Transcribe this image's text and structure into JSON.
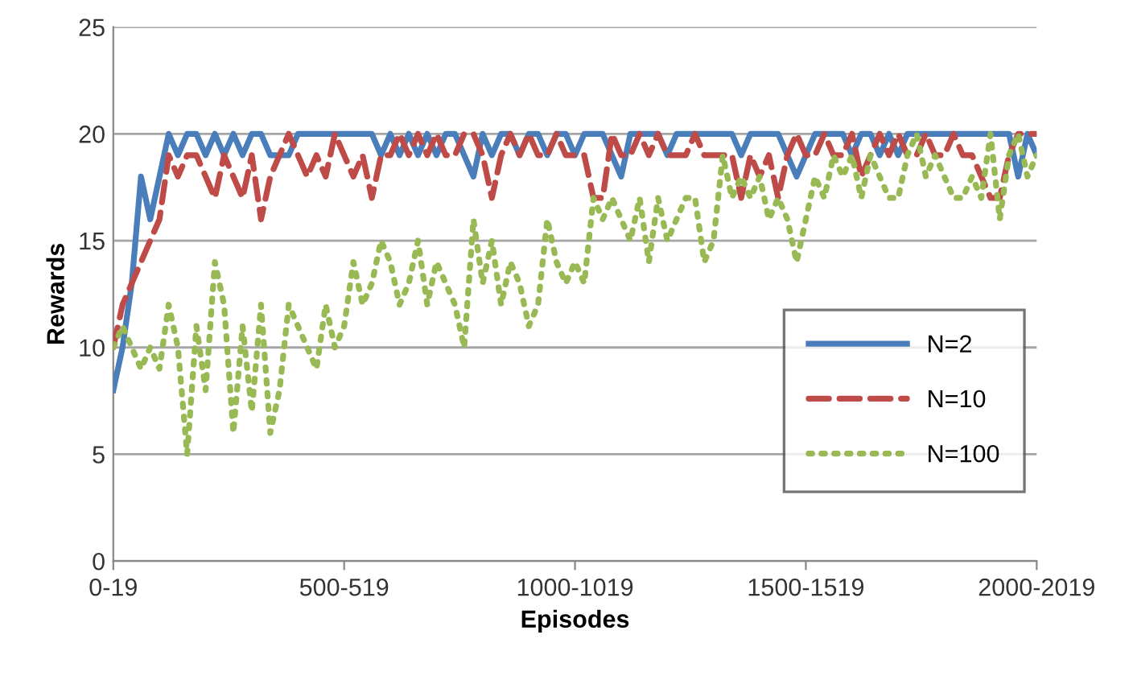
{
  "chart_data": {
    "type": "line",
    "xlabel": "Episodes",
    "ylabel": "Rewards",
    "categories": [
      "0-19",
      null,
      null,
      null,
      null,
      null,
      null,
      null,
      null,
      null,
      null,
      null,
      null,
      null,
      null,
      null,
      null,
      null,
      null,
      null,
      null,
      null,
      null,
      null,
      null,
      "500-519",
      null,
      null,
      null,
      null,
      null,
      null,
      null,
      null,
      null,
      null,
      null,
      null,
      null,
      null,
      null,
      null,
      null,
      null,
      null,
      null,
      null,
      null,
      null,
      null,
      "1000-1019",
      null,
      null,
      null,
      null,
      null,
      null,
      null,
      null,
      null,
      null,
      null,
      null,
      null,
      null,
      null,
      null,
      null,
      null,
      null,
      null,
      null,
      null,
      null,
      null,
      "1500-1519",
      null,
      null,
      null,
      null,
      null,
      null,
      null,
      null,
      null,
      null,
      null,
      null,
      null,
      null,
      null,
      null,
      null,
      null,
      null,
      null,
      null,
      null,
      null,
      null,
      "2000-2019"
    ],
    "series": [
      {
        "name": "N=2",
        "color": "#4a7ebb",
        "line_style": "solid",
        "values": [
          8,
          10,
          13,
          18,
          16,
          18,
          20,
          19,
          20,
          20,
          19,
          20,
          19,
          20,
          19,
          20,
          20,
          19,
          19,
          19,
          20,
          20,
          20,
          20,
          20,
          20,
          20,
          20,
          20,
          19,
          20,
          19,
          20,
          19,
          20,
          19,
          20,
          20,
          19,
          18,
          20,
          19,
          20,
          20,
          19,
          20,
          20,
          19,
          20,
          20,
          19,
          20,
          20,
          20,
          19,
          18,
          20,
          20,
          20,
          20,
          19,
          20,
          20,
          20,
          20,
          20,
          20,
          20,
          19,
          20,
          20,
          20,
          20,
          19,
          18,
          19,
          20,
          20,
          20,
          20,
          19,
          20,
          20,
          19,
          20,
          19,
          20,
          20,
          20,
          20,
          20,
          20,
          20,
          20,
          20,
          20,
          20,
          20,
          18,
          20,
          19
        ]
      },
      {
        "name": "N=10",
        "color": "#be4b48",
        "line_style": "dashed",
        "values": [
          10,
          12,
          13,
          14,
          15,
          16,
          19,
          18,
          19,
          19,
          18,
          17,
          19,
          18,
          17,
          19,
          16,
          18,
          19,
          20,
          19,
          18,
          19,
          18,
          20,
          19,
          18,
          19,
          17,
          19,
          19,
          20,
          19,
          20,
          19,
          20,
          19,
          19,
          20,
          20,
          19,
          17,
          19,
          20,
          19,
          20,
          19,
          19,
          20,
          19,
          19,
          19,
          17,
          17,
          20,
          19,
          19,
          20,
          19,
          20,
          19,
          19,
          19,
          20,
          19,
          19,
          19,
          19,
          17,
          19,
          18,
          19,
          17,
          19,
          20,
          19,
          19,
          20,
          19,
          19,
          20,
          18,
          19,
          20,
          19,
          20,
          19,
          19,
          20,
          19,
          19,
          20,
          19,
          19,
          18,
          17,
          17,
          19,
          20,
          20,
          20
        ]
      },
      {
        "name": "N=100",
        "color": "#98b954",
        "line_style": "dotted",
        "values": [
          10,
          11,
          10,
          9,
          10,
          9,
          12,
          10,
          5,
          11,
          8,
          14,
          12,
          6,
          11,
          7,
          12,
          6,
          8,
          12,
          11,
          10,
          9,
          12,
          10,
          11,
          14,
          12,
          13,
          15,
          14,
          12,
          13,
          15,
          12,
          14,
          13,
          12,
          10,
          16,
          13,
          15,
          12,
          14,
          13,
          11,
          12,
          16,
          14,
          13,
          14,
          13,
          17,
          16,
          17,
          16,
          15,
          17,
          14,
          17,
          15,
          16,
          17,
          17,
          14,
          15,
          19,
          17,
          18,
          17,
          18,
          16,
          17,
          16,
          14,
          16,
          18,
          17,
          19,
          18,
          19,
          17,
          19,
          18,
          17,
          17,
          19,
          20,
          18,
          19,
          18,
          17,
          17,
          18,
          17,
          20,
          16,
          19,
          20,
          18,
          19
        ]
      }
    ],
    "ylim": [
      0,
      25
    ],
    "yticks": [
      0,
      5,
      10,
      15,
      20,
      25
    ],
    "grid": "y",
    "legend": "right",
    "marker": "none"
  }
}
